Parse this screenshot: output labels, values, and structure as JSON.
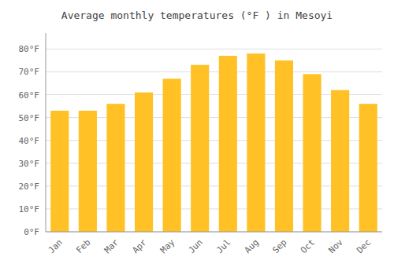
{
  "chart_data": {
    "type": "bar",
    "title": "Average monthly temperatures (°F ) in Mesoyi",
    "categories": [
      "Jan",
      "Feb",
      "Mar",
      "Apr",
      "May",
      "Jun",
      "Jul",
      "Aug",
      "Sep",
      "Oct",
      "Nov",
      "Dec"
    ],
    "values": [
      53,
      53,
      56,
      61,
      67,
      73,
      77,
      78,
      75,
      69,
      62,
      56
    ],
    "color": "#FFC125",
    "ylim": [
      0,
      87
    ],
    "yticks": [
      {
        "value": 0,
        "label": "0°F"
      },
      {
        "value": 10,
        "label": "10°F"
      },
      {
        "value": 20,
        "label": "20°F"
      },
      {
        "value": 30,
        "label": "30°F"
      },
      {
        "value": 40,
        "label": "40°F"
      },
      {
        "value": 50,
        "label": "50°F"
      },
      {
        "value": 60,
        "label": "60°F"
      },
      {
        "value": 70,
        "label": "70°F"
      },
      {
        "value": 80,
        "label": "80°F"
      }
    ],
    "grid": true
  }
}
